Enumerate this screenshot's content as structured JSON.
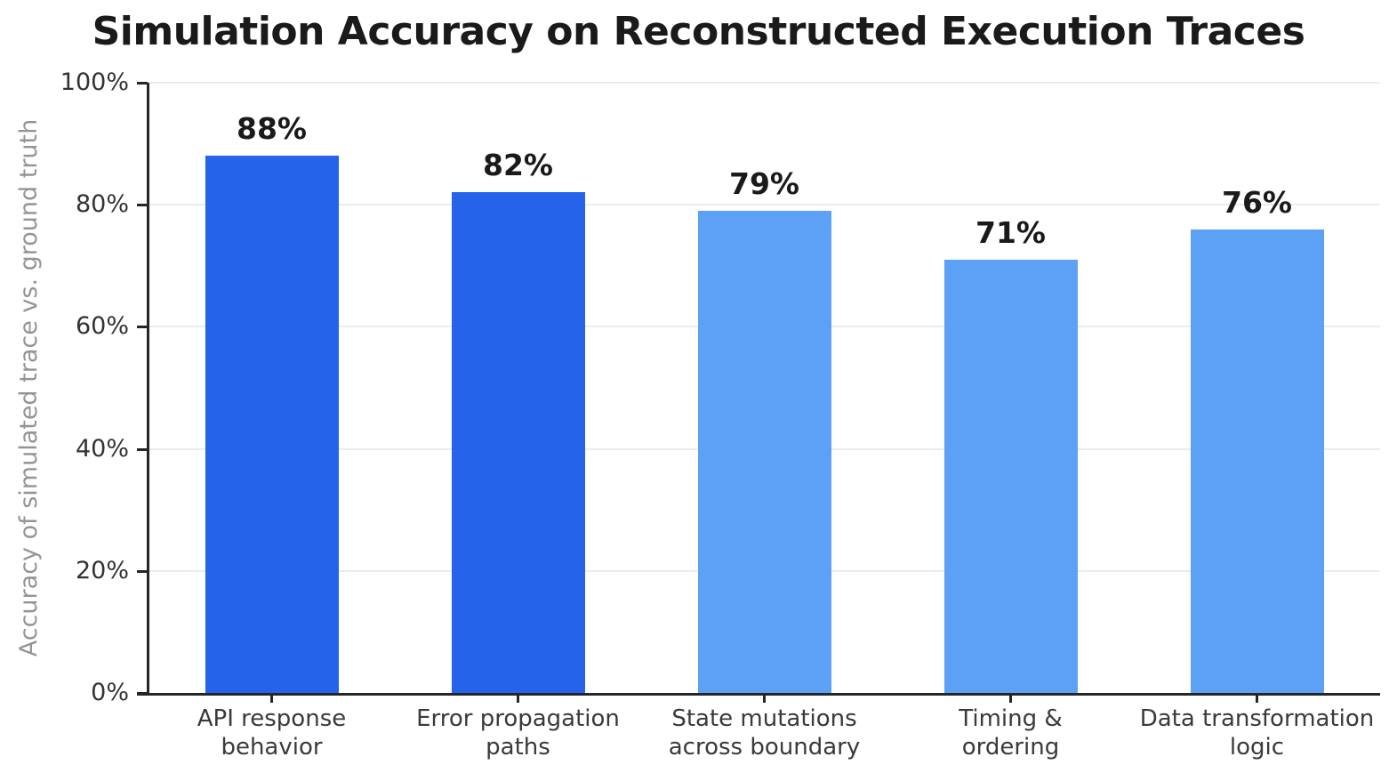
{
  "chart_data": {
    "type": "bar",
    "title": "Simulation Accuracy on Reconstructed Execution Traces",
    "ylabel": "Accuracy of simulated trace vs. ground truth",
    "xlabel": "",
    "categories": [
      "API response\nbehavior",
      "Error propagation\npaths",
      "State mutations\nacross boundary",
      "Timing &\nordering",
      "Data transformation\nlogic"
    ],
    "values": [
      88,
      82,
      79,
      71,
      76
    ],
    "value_labels": [
      "88%",
      "82%",
      "79%",
      "71%",
      "76%"
    ],
    "ylim": [
      0,
      100
    ],
    "yticks": [
      0,
      20,
      40,
      60,
      80,
      100
    ],
    "ytick_labels": [
      "0%",
      "20%",
      "40%",
      "60%",
      "80%",
      "100%"
    ],
    "grid": "horizontal",
    "legend": "none",
    "bar_colors": [
      "#2563eb",
      "#2563eb",
      "#5da1f6",
      "#5da1f6",
      "#5da1f6"
    ],
    "colors": {
      "dark_blue": "#2563eb",
      "light_blue": "#5da1f6",
      "title_text": "#1a1a1a",
      "tick_text": "#333333",
      "xtick_text": "#3a3a3a",
      "axis_label_text": "#949494",
      "spine": "#262626",
      "gridline": "#ececec",
      "background": "#ffffff"
    }
  }
}
